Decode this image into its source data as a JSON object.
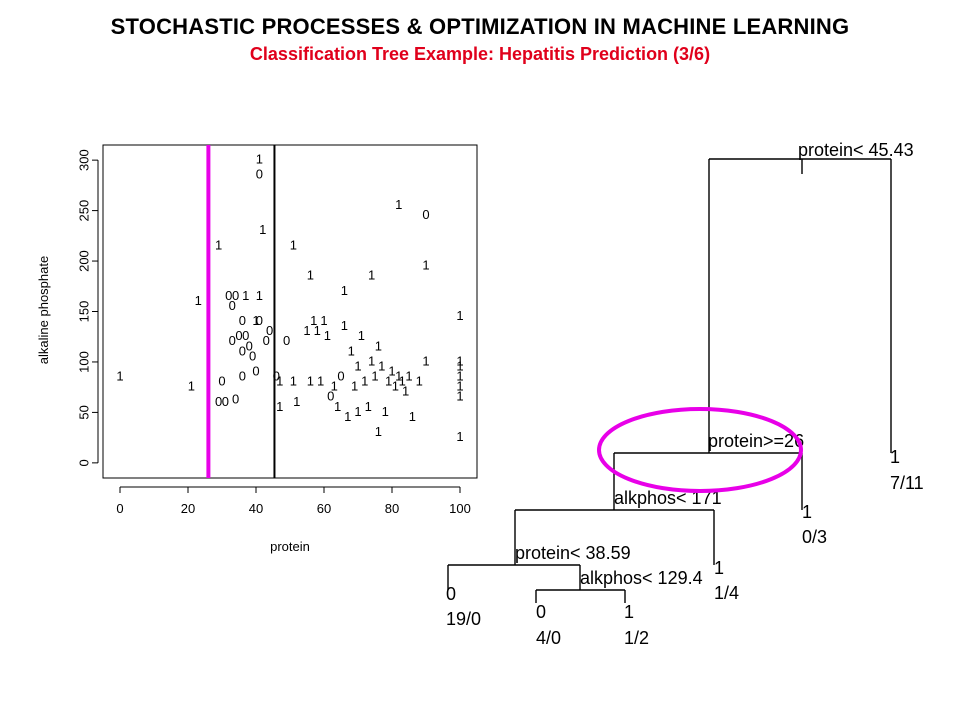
{
  "header": {
    "title": "STOCHASTIC PROCESSES & OPTIMIZATION IN MACHINE LEARNING",
    "subtitle": "Classification Tree Example: Hepatitis Prediction (3/6)",
    "title_color": "#000000",
    "subtitle_color": "#e0001b"
  },
  "chart_data": [
    {
      "type": "scatter",
      "title": "",
      "xlabel": "protein",
      "ylabel": "alkaline phosphate",
      "xlim": [
        -5,
        105
      ],
      "ylim": [
        -15,
        315
      ],
      "xticks": [
        0,
        20,
        40,
        60,
        80,
        100
      ],
      "yticks": [
        0,
        50,
        100,
        150,
        200,
        250,
        300
      ],
      "grid": false,
      "marker": "class label text (0 or 1)",
      "split_lines": [
        {
          "axis": "x",
          "value": 26,
          "color": "#e800e8"
        },
        {
          "axis": "x",
          "value": 45.43,
          "color": "#000000"
        }
      ],
      "points": [
        {
          "x": 0,
          "y": 85,
          "label": "1"
        },
        {
          "x": 21,
          "y": 75,
          "label": "1"
        },
        {
          "x": 23,
          "y": 160,
          "label": "1"
        },
        {
          "x": 29,
          "y": 215,
          "label": "1"
        },
        {
          "x": 29,
          "y": 60,
          "label": "0"
        },
        {
          "x": 30,
          "y": 80,
          "label": "0"
        },
        {
          "x": 31,
          "y": 60,
          "label": "0"
        },
        {
          "x": 32,
          "y": 165,
          "label": "0"
        },
        {
          "x": 33,
          "y": 155,
          "label": "0"
        },
        {
          "x": 33,
          "y": 120,
          "label": "0"
        },
        {
          "x": 34,
          "y": 165,
          "label": "0"
        },
        {
          "x": 34,
          "y": 62,
          "label": "0"
        },
        {
          "x": 35,
          "y": 125,
          "label": "0"
        },
        {
          "x": 36,
          "y": 140,
          "label": "0"
        },
        {
          "x": 36,
          "y": 110,
          "label": "0"
        },
        {
          "x": 36,
          "y": 85,
          "label": "0"
        },
        {
          "x": 37,
          "y": 165,
          "label": "1"
        },
        {
          "x": 37,
          "y": 125,
          "label": "0"
        },
        {
          "x": 38,
          "y": 115,
          "label": "0"
        },
        {
          "x": 39,
          "y": 105,
          "label": "0"
        },
        {
          "x": 40,
          "y": 90,
          "label": "0"
        },
        {
          "x": 40,
          "y": 140,
          "label": "1"
        },
        {
          "x": 41,
          "y": 140,
          "label": "0"
        },
        {
          "x": 41,
          "y": 165,
          "label": "1"
        },
        {
          "x": 41,
          "y": 300,
          "label": "1"
        },
        {
          "x": 41,
          "y": 285,
          "label": "0"
        },
        {
          "x": 42,
          "y": 230,
          "label": "1"
        },
        {
          "x": 43,
          "y": 120,
          "label": "0"
        },
        {
          "x": 44,
          "y": 130,
          "label": "0"
        },
        {
          "x": 46,
          "y": 85,
          "label": "0"
        },
        {
          "x": 47,
          "y": 80,
          "label": "1"
        },
        {
          "x": 47,
          "y": 55,
          "label": "1"
        },
        {
          "x": 49,
          "y": 120,
          "label": "0"
        },
        {
          "x": 51,
          "y": 215,
          "label": "1"
        },
        {
          "x": 51,
          "y": 80,
          "label": "1"
        },
        {
          "x": 52,
          "y": 60,
          "label": "1"
        },
        {
          "x": 55,
          "y": 130,
          "label": "1"
        },
        {
          "x": 56,
          "y": 185,
          "label": "1"
        },
        {
          "x": 56,
          "y": 80,
          "label": "1"
        },
        {
          "x": 57,
          "y": 140,
          "label": "1"
        },
        {
          "x": 58,
          "y": 130,
          "label": "1"
        },
        {
          "x": 59,
          "y": 80,
          "label": "1"
        },
        {
          "x": 60,
          "y": 140,
          "label": "1"
        },
        {
          "x": 61,
          "y": 125,
          "label": "1"
        },
        {
          "x": 62,
          "y": 65,
          "label": "0"
        },
        {
          "x": 63,
          "y": 75,
          "label": "1"
        },
        {
          "x": 64,
          "y": 55,
          "label": "1"
        },
        {
          "x": 65,
          "y": 85,
          "label": "0"
        },
        {
          "x": 66,
          "y": 170,
          "label": "1"
        },
        {
          "x": 66,
          "y": 135,
          "label": "1"
        },
        {
          "x": 67,
          "y": 45,
          "label": "1"
        },
        {
          "x": 68,
          "y": 110,
          "label": "1"
        },
        {
          "x": 69,
          "y": 75,
          "label": "1"
        },
        {
          "x": 70,
          "y": 95,
          "label": "1"
        },
        {
          "x": 70,
          "y": 50,
          "label": "1"
        },
        {
          "x": 71,
          "y": 125,
          "label": "1"
        },
        {
          "x": 72,
          "y": 80,
          "label": "1"
        },
        {
          "x": 73,
          "y": 55,
          "label": "1"
        },
        {
          "x": 74,
          "y": 185,
          "label": "1"
        },
        {
          "x": 74,
          "y": 100,
          "label": "1"
        },
        {
          "x": 75,
          "y": 85,
          "label": "1"
        },
        {
          "x": 76,
          "y": 30,
          "label": "1"
        },
        {
          "x": 76,
          "y": 115,
          "label": "1"
        },
        {
          "x": 77,
          "y": 95,
          "label": "1"
        },
        {
          "x": 78,
          "y": 50,
          "label": "1"
        },
        {
          "x": 79,
          "y": 80,
          "label": "1"
        },
        {
          "x": 80,
          "y": 90,
          "label": "1"
        },
        {
          "x": 81,
          "y": 75,
          "label": "1"
        },
        {
          "x": 82,
          "y": 85,
          "label": "1"
        },
        {
          "x": 82,
          "y": 255,
          "label": "1"
        },
        {
          "x": 83,
          "y": 80,
          "label": "1"
        },
        {
          "x": 84,
          "y": 70,
          "label": "1"
        },
        {
          "x": 85,
          "y": 85,
          "label": "1"
        },
        {
          "x": 86,
          "y": 45,
          "label": "1"
        },
        {
          "x": 88,
          "y": 80,
          "label": "1"
        },
        {
          "x": 90,
          "y": 245,
          "label": "0"
        },
        {
          "x": 90,
          "y": 195,
          "label": "1"
        },
        {
          "x": 90,
          "y": 100,
          "label": "1"
        },
        {
          "x": 100,
          "y": 145,
          "label": "1"
        },
        {
          "x": 100,
          "y": 100,
          "label": "1"
        },
        {
          "x": 100,
          "y": 95,
          "label": "1"
        },
        {
          "x": 100,
          "y": 85,
          "label": "1"
        },
        {
          "x": 100,
          "y": 75,
          "label": "1"
        },
        {
          "x": 100,
          "y": 65,
          "label": "1"
        },
        {
          "x": 100,
          "y": 25,
          "label": "1"
        }
      ]
    },
    {
      "type": "tree",
      "split_labels": [
        "protein< 45.43",
        "protein>=26",
        "alkphos< 171",
        "protein< 38.59",
        "alkphos< 129.4"
      ],
      "leaves": [
        {
          "class": "0",
          "counts": "19/0"
        },
        {
          "class": "0",
          "counts": "4/0"
        },
        {
          "class": "1",
          "counts": "1/2"
        },
        {
          "class": "1",
          "counts": "1/4"
        },
        {
          "class": "1",
          "counts": "0/3"
        },
        {
          "class": "1",
          "counts": "7/11"
        }
      ],
      "highlight_color": "#e800e8"
    }
  ]
}
